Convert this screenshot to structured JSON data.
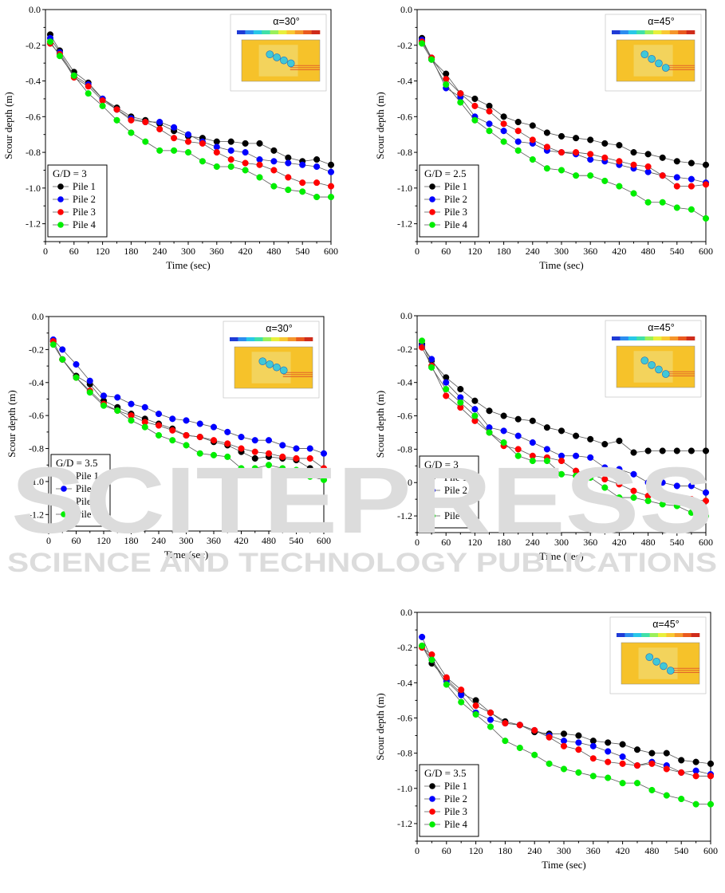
{
  "watermark": {
    "line1": "SCITEPRESS",
    "line2": "SCIENCE AND TECHNOLOGY PUBLICATIONS"
  },
  "colors": {
    "pile1": "#000000",
    "pile2": "#0000ff",
    "pile3": "#ff0000",
    "pile4": "#00ee00"
  },
  "chart_data": [
    {
      "type": "line",
      "ylabel": "Scour depth (m)",
      "xlabel": "Time (sec)",
      "xlim": [
        0,
        600
      ],
      "ylim": [
        -1.3,
        0.0
      ],
      "xticks": [
        0,
        60,
        120,
        180,
        240,
        300,
        360,
        420,
        480,
        540,
        600
      ],
      "yticks": [
        0.0,
        -0.2,
        -0.4,
        -0.6,
        -0.8,
        -1.0,
        -1.2
      ],
      "legend_title": "G/D = 3",
      "inset_title": "α=30°",
      "x": [
        10,
        30,
        60,
        90,
        120,
        150,
        180,
        210,
        240,
        270,
        300,
        330,
        360,
        390,
        420,
        450,
        480,
        510,
        540,
        570,
        600
      ],
      "series": [
        {
          "name": "Pile 1",
          "values": [
            -0.14,
            -0.23,
            -0.35,
            -0.41,
            -0.5,
            -0.55,
            -0.6,
            -0.62,
            -0.64,
            -0.68,
            -0.71,
            -0.72,
            -0.74,
            -0.74,
            -0.75,
            -0.75,
            -0.79,
            -0.83,
            -0.85,
            -0.84,
            -0.87
          ]
        },
        {
          "name": "Pile 2",
          "values": [
            -0.16,
            -0.24,
            -0.37,
            -0.42,
            -0.5,
            -0.56,
            -0.61,
            -0.63,
            -0.63,
            -0.66,
            -0.7,
            -0.74,
            -0.77,
            -0.79,
            -0.8,
            -0.84,
            -0.85,
            -0.86,
            -0.87,
            -0.88,
            -0.91
          ]
        },
        {
          "name": "Pile 3",
          "values": [
            -0.19,
            -0.25,
            -0.38,
            -0.43,
            -0.51,
            -0.56,
            -0.62,
            -0.63,
            -0.67,
            -0.72,
            -0.74,
            -0.75,
            -0.8,
            -0.84,
            -0.86,
            -0.87,
            -0.9,
            -0.94,
            -0.97,
            -0.97,
            -0.99
          ]
        },
        {
          "name": "Pile 4",
          "values": [
            -0.18,
            -0.26,
            -0.37,
            -0.47,
            -0.54,
            -0.62,
            -0.69,
            -0.74,
            -0.79,
            -0.79,
            -0.8,
            -0.85,
            -0.88,
            -0.88,
            -0.9,
            -0.94,
            -0.99,
            -1.01,
            -1.02,
            -1.05,
            -1.05
          ]
        }
      ]
    },
    {
      "type": "line",
      "ylabel": "Scour depth (m)",
      "xlabel": "Time (sec)",
      "xlim": [
        0,
        600
      ],
      "ylim": [
        -1.3,
        0.0
      ],
      "xticks": [
        0,
        60,
        120,
        180,
        240,
        300,
        360,
        420,
        480,
        540,
        600
      ],
      "yticks": [
        0.0,
        -0.2,
        -0.4,
        -0.6,
        -0.8,
        -1.0,
        -1.2
      ],
      "legend_title": "G/D = 2.5",
      "inset_title": "α=45°",
      "x": [
        10,
        30,
        60,
        90,
        120,
        150,
        180,
        210,
        240,
        270,
        300,
        330,
        360,
        390,
        420,
        450,
        480,
        510,
        540,
        570,
        600
      ],
      "series": [
        {
          "name": "Pile 1",
          "values": [
            -0.16,
            -0.28,
            -0.36,
            -0.47,
            -0.5,
            -0.54,
            -0.6,
            -0.63,
            -0.65,
            -0.69,
            -0.71,
            -0.72,
            -0.73,
            -0.75,
            -0.76,
            -0.8,
            -0.81,
            -0.83,
            -0.85,
            -0.86,
            -0.87
          ]
        },
        {
          "name": "Pile 2",
          "values": [
            -0.17,
            -0.27,
            -0.44,
            -0.49,
            -0.6,
            -0.64,
            -0.68,
            -0.74,
            -0.75,
            -0.79,
            -0.8,
            -0.81,
            -0.84,
            -0.85,
            -0.87,
            -0.89,
            -0.91,
            -0.93,
            -0.94,
            -0.95,
            -0.97
          ]
        },
        {
          "name": "Pile 3",
          "values": [
            -0.18,
            -0.27,
            -0.39,
            -0.47,
            -0.54,
            -0.57,
            -0.64,
            -0.68,
            -0.73,
            -0.77,
            -0.8,
            -0.8,
            -0.81,
            -0.83,
            -0.85,
            -0.87,
            -0.88,
            -0.93,
            -0.99,
            -0.99,
            -0.98
          ]
        },
        {
          "name": "Pile 4",
          "values": [
            -0.19,
            -0.28,
            -0.42,
            -0.52,
            -0.62,
            -0.68,
            -0.74,
            -0.79,
            -0.84,
            -0.89,
            -0.9,
            -0.93,
            -0.93,
            -0.96,
            -0.99,
            -1.03,
            -1.08,
            -1.08,
            -1.11,
            -1.12,
            -1.17
          ]
        }
      ]
    },
    {
      "type": "line",
      "ylabel": "Scour depth (m)",
      "xlabel": "Time (sec)",
      "xlim": [
        0,
        600
      ],
      "ylim": [
        -1.3,
        0.0
      ],
      "xticks": [
        0,
        60,
        120,
        180,
        240,
        300,
        360,
        420,
        480,
        540,
        600
      ],
      "yticks": [
        0.0,
        -0.2,
        -0.4,
        -0.6,
        -0.8,
        -1.0,
        -1.2
      ],
      "legend_title": "G/D = 3.5",
      "inset_title": "α=30°",
      "x": [
        10,
        30,
        60,
        90,
        120,
        150,
        180,
        210,
        240,
        270,
        300,
        330,
        360,
        390,
        420,
        450,
        480,
        510,
        540,
        570,
        600
      ],
      "series": [
        {
          "name": "Pile 1",
          "values": [
            -0.15,
            -0.26,
            -0.36,
            -0.41,
            -0.51,
            -0.55,
            -0.59,
            -0.62,
            -0.65,
            -0.68,
            -0.72,
            -0.73,
            -0.76,
            -0.78,
            -0.82,
            -0.86,
            -0.85,
            -0.86,
            -0.87,
            -0.92,
            -0.93
          ]
        },
        {
          "name": "Pile 2",
          "values": [
            -0.14,
            -0.2,
            -0.29,
            -0.39,
            -0.48,
            -0.49,
            -0.53,
            -0.55,
            -0.59,
            -0.62,
            -0.63,
            -0.65,
            -0.67,
            -0.7,
            -0.73,
            -0.75,
            -0.75,
            -0.78,
            -0.8,
            -0.8,
            -0.83
          ]
        },
        {
          "name": "Pile 3",
          "values": [
            -0.15,
            -0.26,
            -0.37,
            -0.45,
            -0.53,
            -0.57,
            -0.6,
            -0.64,
            -0.66,
            -0.69,
            -0.72,
            -0.73,
            -0.75,
            -0.77,
            -0.8,
            -0.82,
            -0.83,
            -0.85,
            -0.86,
            -0.86,
            -0.92
          ]
        },
        {
          "name": "Pile 4",
          "values": [
            -0.17,
            -0.26,
            -0.37,
            -0.46,
            -0.54,
            -0.57,
            -0.63,
            -0.67,
            -0.72,
            -0.75,
            -0.78,
            -0.83,
            -0.84,
            -0.85,
            -0.92,
            -0.92,
            -0.9,
            -0.92,
            -0.93,
            -0.97,
            -0.99
          ]
        }
      ]
    },
    {
      "type": "line",
      "ylabel": "Scour depth (m)",
      "xlabel": "Time (sec)",
      "xlim": [
        0,
        600
      ],
      "ylim": [
        -1.3,
        0.0
      ],
      "xticks": [
        0,
        60,
        120,
        180,
        240,
        300,
        360,
        420,
        480,
        540,
        600
      ],
      "yticks": [
        0.0,
        -0.2,
        -0.4,
        -0.6,
        -0.8,
        -1.0,
        -1.2
      ],
      "legend_title": "G/D = 3",
      "inset_title": "α=45°",
      "x": [
        10,
        30,
        60,
        90,
        120,
        150,
        180,
        210,
        240,
        270,
        300,
        330,
        360,
        390,
        420,
        450,
        480,
        510,
        540,
        570,
        600
      ],
      "series": [
        {
          "name": "Pile 1",
          "values": [
            -0.17,
            -0.27,
            -0.37,
            -0.44,
            -0.51,
            -0.57,
            -0.6,
            -0.62,
            -0.63,
            -0.67,
            -0.69,
            -0.72,
            -0.74,
            -0.77,
            -0.75,
            -0.82,
            -0.81,
            -0.81,
            -0.81,
            -0.81,
            -0.81
          ]
        },
        {
          "name": "Pile 2",
          "values": [
            -0.18,
            -0.26,
            -0.4,
            -0.49,
            -0.56,
            -0.67,
            -0.69,
            -0.72,
            -0.76,
            -0.8,
            -0.84,
            -0.84,
            -0.85,
            -0.91,
            -0.92,
            -0.95,
            -1.0,
            -1.0,
            -1.02,
            -1.02,
            -1.06
          ]
        },
        {
          "name": "Pile 3",
          "values": [
            -0.19,
            -0.3,
            -0.48,
            -0.55,
            -0.63,
            -0.7,
            -0.78,
            -0.8,
            -0.84,
            -0.85,
            -0.87,
            -0.93,
            -0.95,
            -0.98,
            -1.01,
            -1.05,
            -1.08,
            -1.09,
            -1.1,
            -1.1,
            -1.11
          ]
        },
        {
          "name": "Pile 4",
          "values": [
            -0.15,
            -0.31,
            -0.44,
            -0.52,
            -0.6,
            -0.7,
            -0.76,
            -0.84,
            -0.87,
            -0.87,
            -0.95,
            -0.96,
            -0.97,
            -1.03,
            -1.09,
            -1.09,
            -1.11,
            -1.13,
            -1.14,
            -1.18,
            -1.2
          ]
        }
      ]
    },
    {
      "type": "line",
      "ylabel": "Scour depth (m)",
      "xlabel": "Time (sec)",
      "xlim": [
        0,
        600
      ],
      "ylim": [
        -1.3,
        0.0
      ],
      "xticks": [
        0,
        60,
        120,
        180,
        240,
        300,
        360,
        420,
        480,
        540,
        600
      ],
      "yticks": [
        0.0,
        -0.2,
        -0.4,
        -0.6,
        -0.8,
        -1.0,
        -1.2
      ],
      "legend_title": "G/D = 3.5",
      "inset_title": "α=45°",
      "x": [
        10,
        30,
        60,
        90,
        120,
        150,
        180,
        210,
        240,
        270,
        300,
        330,
        360,
        390,
        420,
        450,
        480,
        510,
        540,
        570,
        600
      ],
      "series": [
        {
          "name": "Pile 1",
          "values": [
            -0.19,
            -0.29,
            -0.38,
            -0.46,
            -0.5,
            -0.57,
            -0.62,
            -0.64,
            -0.68,
            -0.69,
            -0.69,
            -0.7,
            -0.73,
            -0.74,
            -0.75,
            -0.78,
            -0.8,
            -0.8,
            -0.84,
            -0.85,
            -0.86
          ]
        },
        {
          "name": "Pile 2",
          "values": [
            -0.14,
            -0.27,
            -0.39,
            -0.47,
            -0.57,
            -0.61,
            -0.63,
            -0.64,
            -0.67,
            -0.7,
            -0.73,
            -0.74,
            -0.76,
            -0.79,
            -0.82,
            -0.87,
            -0.85,
            -0.87,
            -0.91,
            -0.9,
            -0.92
          ]
        },
        {
          "name": "Pile 3",
          "values": [
            -0.2,
            -0.24,
            -0.37,
            -0.44,
            -0.53,
            -0.57,
            -0.63,
            -0.64,
            -0.67,
            -0.71,
            -0.76,
            -0.78,
            -0.83,
            -0.85,
            -0.86,
            -0.87,
            -0.86,
            -0.89,
            -0.91,
            -0.93,
            -0.93
          ]
        },
        {
          "name": "Pile 4",
          "values": [
            -0.19,
            -0.27,
            -0.41,
            -0.51,
            -0.58,
            -0.65,
            -0.73,
            -0.77,
            -0.81,
            -0.86,
            -0.89,
            -0.91,
            -0.93,
            -0.94,
            -0.97,
            -0.97,
            -1.01,
            -1.04,
            -1.06,
            -1.09,
            -1.09
          ]
        }
      ]
    }
  ]
}
